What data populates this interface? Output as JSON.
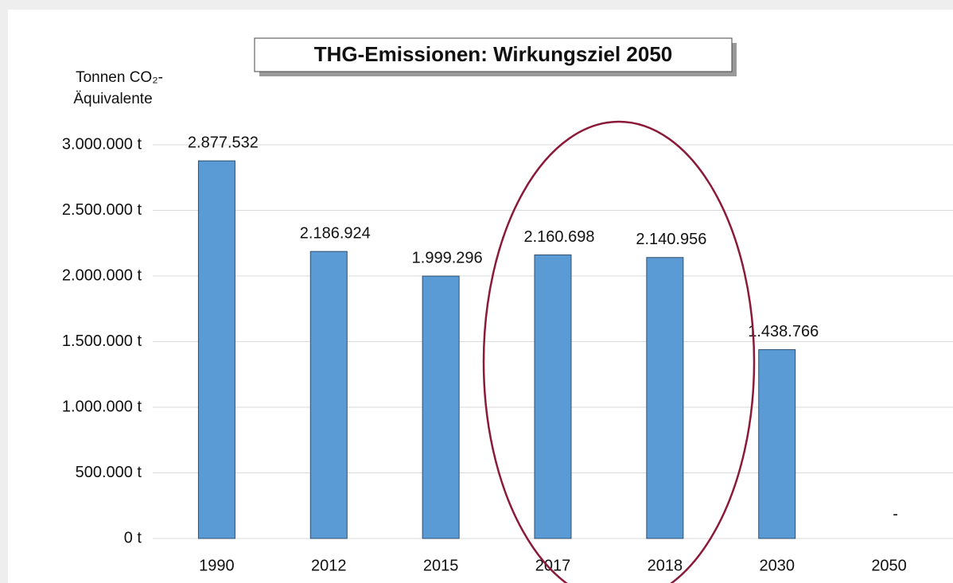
{
  "chart_data": {
    "type": "bar",
    "title": "THG-Emissionen: Wirkungsziel 2050",
    "y_label": [
      "Tonnen CO₂-",
      "Äquivalente"
    ],
    "categories": [
      "1990",
      "2012",
      "2015",
      "2017",
      "2018",
      "2030",
      "2050"
    ],
    "values": [
      2877532,
      2186924,
      1999296,
      2160698,
      2140956,
      1438766,
      0
    ],
    "value_labels": [
      "2.877.532",
      "2.186.924",
      "1.999.296",
      "2.160.698",
      "2.140.956",
      "1.438.766",
      "-"
    ],
    "color": "#5b9bd5",
    "ylim": [
      0,
      3000000
    ],
    "yticks": [
      {
        "value": 0,
        "label": "0 t"
      },
      {
        "value": 500000,
        "label": "500.000 t"
      },
      {
        "value": 1000000,
        "label": "1.000.000 t"
      },
      {
        "value": 1500000,
        "label": "1.500.000 t"
      },
      {
        "value": 2000000,
        "label": "2.000.000 t"
      },
      {
        "value": 2500000,
        "label": "2.500.000 t"
      },
      {
        "value": 3000000,
        "label": "3.000.000 t"
      }
    ],
    "grid": true
  }
}
